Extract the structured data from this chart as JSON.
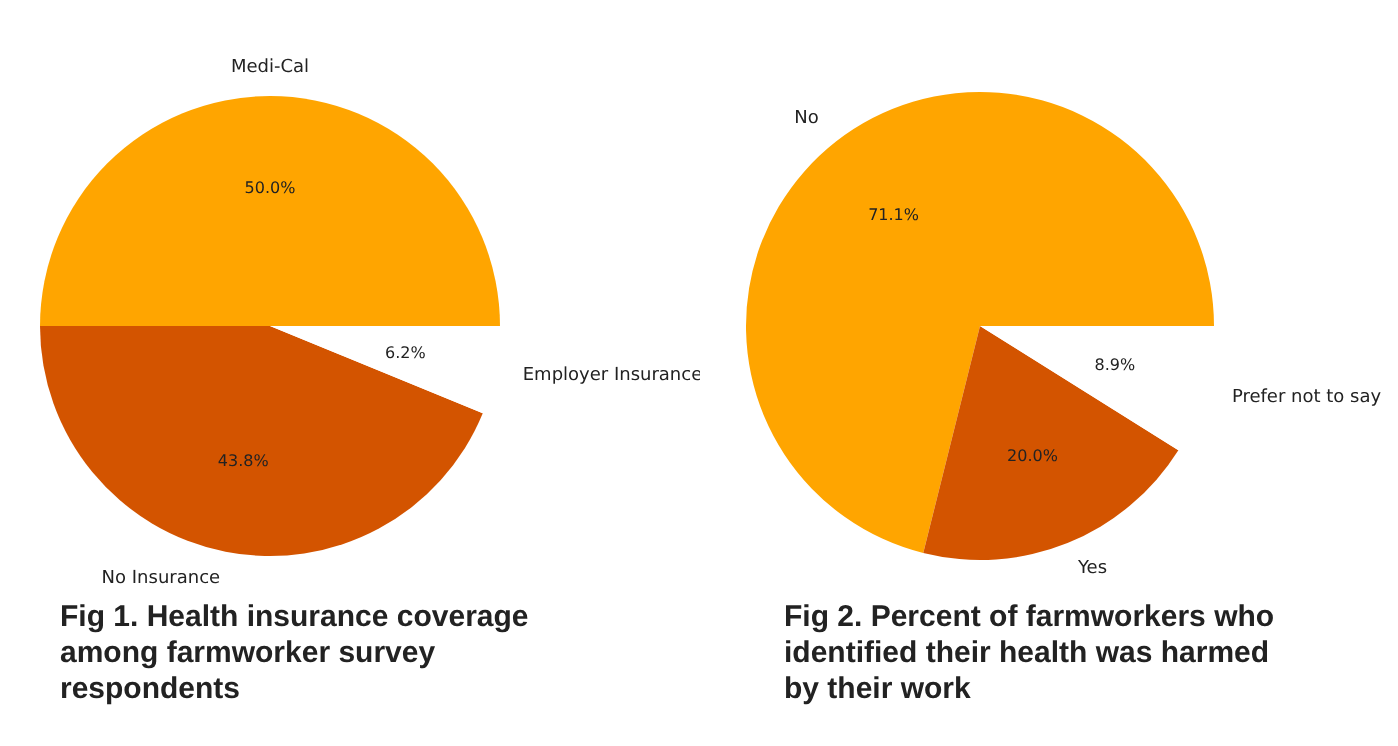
{
  "chart_data": [
    {
      "type": "pie",
      "title": "Fig 1. Health insurance coverage among farmworker survey respondents",
      "categories": [
        "Medi-Cal",
        "No Insurance",
        "Employer Insurance"
      ],
      "values": [
        50.0,
        43.8,
        6.2
      ],
      "colors": [
        "#ffa500",
        "#d35400",
        "#ffffff"
      ],
      "value_labels": [
        "50.0%",
        "43.8%",
        "6.2%"
      ],
      "legend": false
    },
    {
      "type": "pie",
      "title": "Fig 2. Percent of farmworkers who identified their health was harmed by their work",
      "categories": [
        "No",
        "Yes",
        "Prefer not to say"
      ],
      "values": [
        71.1,
        20.0,
        8.9
      ],
      "colors": [
        "#ffa500",
        "#d35400",
        "#ffffff"
      ],
      "value_labels": [
        "71.1%",
        "20.0%",
        "8.9%"
      ],
      "legend": false
    }
  ]
}
